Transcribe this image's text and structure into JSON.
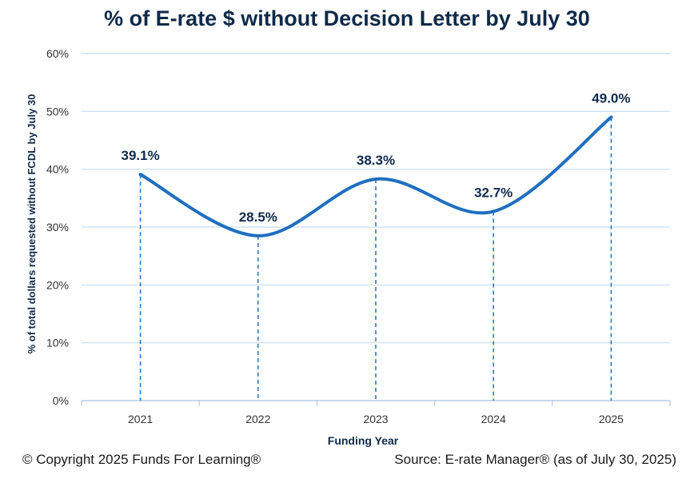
{
  "chart_data": {
    "type": "line",
    "title": "% of E-rate $ without Decision Letter by July 30",
    "xlabel": "Funding Year",
    "ylabel": "% of total dollars requested without FCDL by July 30",
    "categories": [
      "2021",
      "2022",
      "2023",
      "2024",
      "2025"
    ],
    "series": [
      {
        "values": [
          39.1,
          28.5,
          38.3,
          32.7,
          49.0
        ],
        "data_labels": [
          "39.1%",
          "28.5%",
          "38.3%",
          "32.7%",
          "49.0%"
        ]
      }
    ],
    "ylim": [
      0,
      60
    ],
    "y_ticks": [
      0,
      10,
      20,
      30,
      40,
      50,
      60
    ],
    "y_tick_labels": [
      "0%",
      "10%",
      "20%",
      "30%",
      "40%",
      "50%",
      "60%"
    ],
    "grid": true,
    "smooth": true,
    "drop_lines": true,
    "line_color": "#1f6fbf",
    "grid_color": "#c9dcef",
    "text_color": "#0f2a4a"
  },
  "footer": {
    "copyright": "© Copyright 2025 Funds For Learning®",
    "source": "Source: E-rate Manager® (as of July 30, 2025)"
  }
}
